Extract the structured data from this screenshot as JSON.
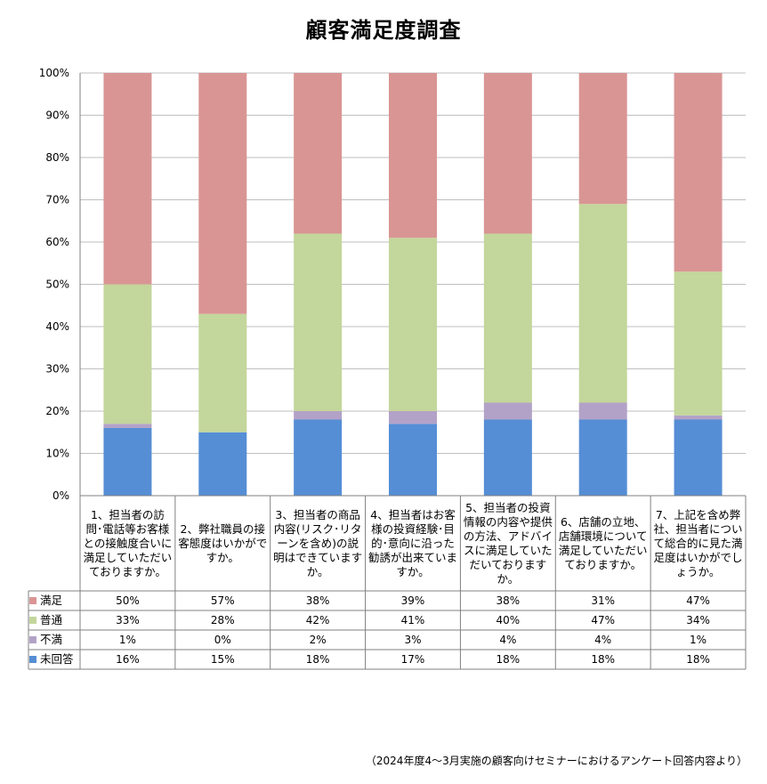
{
  "chart_data": {
    "type": "bar",
    "stacked": true,
    "title": "顧客満足度調査",
    "ylim": [
      0,
      100
    ],
    "yticks": [
      "0%",
      "10%",
      "20%",
      "30%",
      "40%",
      "50%",
      "60%",
      "70%",
      "80%",
      "90%",
      "100%"
    ],
    "categories": [
      "1、担当者の訪問･電話等お客様との接触度合いに満足していただいておりますか。",
      "2、弊社職員の接客態度はいかがですか。",
      "3、担当者の商品内容(リスク･リターンを含め)の説明はできていますか。",
      "4、担当者はお客様の投資経験･目的･意向に沿った勧誘が出来ていますか。",
      "5、担当者の投資情報の内容や提供の方法、アドバイスに満足していただいておりますか。",
      "6、店舗の立地、店舗環境について満足していただいておりますか。",
      "7、上記を含め弊社、担当者について総合的に見た満足度はいかがでしょうか。"
    ],
    "series": [
      {
        "name": "満足",
        "color": "#d99594",
        "values": [
          50,
          57,
          38,
          39,
          38,
          31,
          47
        ],
        "labels": [
          "50%",
          "57%",
          "38%",
          "39%",
          "38%",
          "31%",
          "47%"
        ]
      },
      {
        "name": "普通",
        "color": "#c3d69b",
        "values": [
          33,
          28,
          42,
          41,
          40,
          47,
          34
        ],
        "labels": [
          "33%",
          "28%",
          "42%",
          "41%",
          "40%",
          "47%",
          "34%"
        ]
      },
      {
        "name": "不満",
        "color": "#b3a2c7",
        "values": [
          1,
          0,
          2,
          3,
          4,
          4,
          1
        ],
        "labels": [
          "1%",
          "0%",
          "2%",
          "3%",
          "4%",
          "4%",
          "1%"
        ]
      },
      {
        "name": "未回答",
        "color": "#558ed5",
        "values": [
          16,
          15,
          18,
          17,
          18,
          18,
          18
        ],
        "labels": [
          "16%",
          "15%",
          "18%",
          "17%",
          "18%",
          "18%",
          "18%"
        ]
      }
    ],
    "footnote": "（2024年度4～3月実施の顧客向けセミナーにおけるアンケート回答内容より）"
  }
}
